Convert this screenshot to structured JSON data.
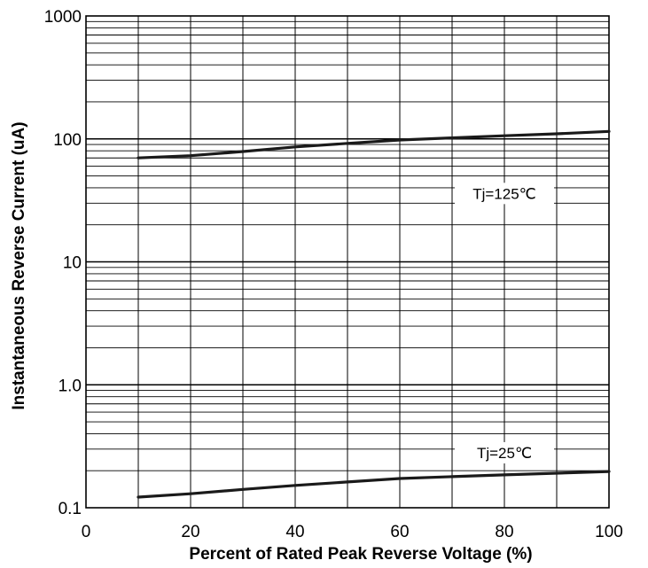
{
  "chart_data": {
    "type": "line",
    "title": "",
    "xlabel": "Percent of Rated Peak Reverse Voltage  (%)",
    "ylabel": "Instantaneous Reverse Current (uA)",
    "xlim": [
      0,
      100
    ],
    "ylim": [
      0.1,
      1000
    ],
    "yscale": "log",
    "grid": true,
    "x_ticks": [
      0,
      20,
      40,
      60,
      80,
      100
    ],
    "x_tick_labels": [
      "0",
      "20",
      "40",
      "60",
      "80",
      "100"
    ],
    "y_ticks": [
      0.1,
      1,
      10,
      100,
      1000
    ],
    "y_tick_labels": [
      "0.1",
      "1.0",
      "10",
      "100",
      "1000"
    ],
    "series": [
      {
        "name": "Tj=125℃",
        "x": [
          10,
          20,
          30,
          40,
          50,
          60,
          70,
          80,
          90,
          100
        ],
        "y": [
          70,
          73,
          79,
          86,
          92,
          98,
          102,
          106,
          110,
          115
        ]
      },
      {
        "name": "Tj=25℃",
        "x": [
          10,
          20,
          30,
          40,
          50,
          60,
          70,
          80,
          90,
          100
        ],
        "y": [
          0.122,
          0.13,
          0.141,
          0.152,
          0.162,
          0.173,
          0.179,
          0.185,
          0.191,
          0.197
        ]
      }
    ]
  }
}
